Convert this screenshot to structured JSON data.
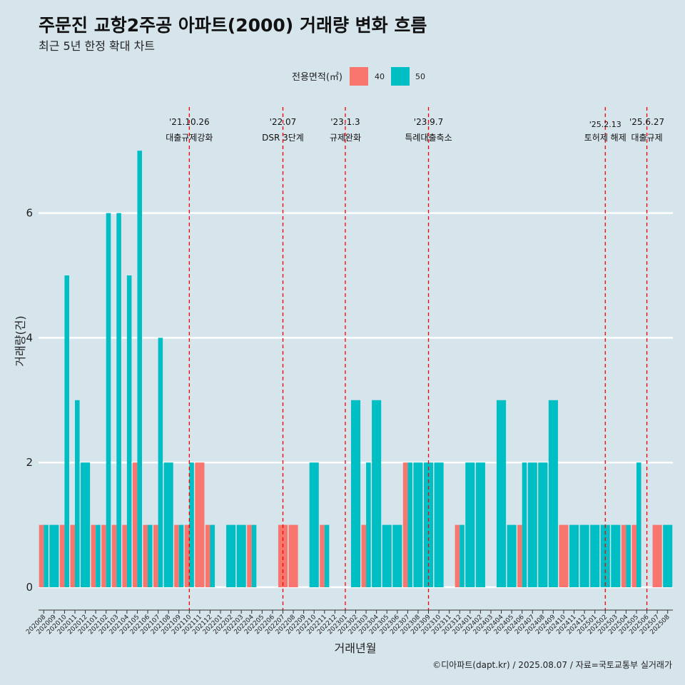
{
  "chart_data": {
    "type": "bar",
    "title": "주문진 교항2주공 아파트(2000) 거래량 변화 흐름",
    "subtitle": "최근 5년 한정 확대 차트",
    "xlabel": "거래년월",
    "ylabel": "거래량(건)",
    "caption": "©디아파트(dapt.kr) / 2025.08.07 / 자료=국토교통부 실거래가",
    "legend": {
      "title": "전용면적(㎡)",
      "position": "top"
    },
    "ylim": [
      0,
      7
    ],
    "yticks": [
      0,
      2,
      4,
      6
    ],
    "grid": true,
    "categories": [
      "202008",
      "202009",
      "202010",
      "202011",
      "202012",
      "202101",
      "202102",
      "202103",
      "202104",
      "202105",
      "202106",
      "202107",
      "202108",
      "202109",
      "202110",
      "202111",
      "202112",
      "202201",
      "202202",
      "202203",
      "202204",
      "202205",
      "202206",
      "202207",
      "202208",
      "202209",
      "202210",
      "202211",
      "202212",
      "202301",
      "202302",
      "202303",
      "202304",
      "202305",
      "202306",
      "202307",
      "202308",
      "202309",
      "202310",
      "202311",
      "202312",
      "202401",
      "202402",
      "202403",
      "202404",
      "202405",
      "202406",
      "202407",
      "202408",
      "202409",
      "202410",
      "202411",
      "202412",
      "202501",
      "202502",
      "202503",
      "202504",
      "202505",
      "202506",
      "202507",
      "202508"
    ],
    "series": [
      {
        "name": "40",
        "color": "#f8766d",
        "values": [
          1,
          0,
          1,
          1,
          0,
          1,
          1,
          1,
          1,
          2,
          1,
          1,
          0,
          1,
          1,
          2,
          1,
          0,
          0,
          0,
          1,
          0,
          0,
          1,
          1,
          0,
          0,
          1,
          0,
          0,
          0,
          1,
          0,
          0,
          0,
          2,
          0,
          0,
          0,
          0,
          1,
          0,
          0,
          0,
          0,
          0,
          1,
          0,
          0,
          0,
          1,
          0,
          0,
          0,
          0,
          0,
          1,
          1,
          0,
          1,
          0
        ]
      },
      {
        "name": "50",
        "color": "#00bfc4",
        "values": [
          1,
          1,
          5,
          3,
          2,
          1,
          6,
          6,
          5,
          7,
          1,
          4,
          2,
          1,
          2,
          0,
          1,
          0,
          1,
          1,
          1,
          0,
          0,
          0,
          0,
          0,
          2,
          1,
          0,
          0,
          3,
          2,
          3,
          1,
          1,
          2,
          2,
          2,
          2,
          0,
          1,
          2,
          2,
          0,
          3,
          1,
          2,
          2,
          2,
          3,
          0,
          1,
          1,
          1,
          1,
          1,
          1,
          2,
          0,
          0,
          1
        ]
      }
    ],
    "annotations": [
      {
        "x": "202110",
        "date": "'21.10.26",
        "label": "대출규제강화"
      },
      {
        "x": "202207",
        "date": "'22.07",
        "label": "DSR 3단계"
      },
      {
        "x": "202301",
        "date": "'23.1.3",
        "label": "규제완화"
      },
      {
        "x": "202309",
        "date": "'23.9.7",
        "label": "특례대출축소"
      },
      {
        "x": "202502",
        "date": "'25.2.13",
        "label": "토허제 해제"
      },
      {
        "x": "202506",
        "date": "'25.6.27",
        "label": "대출규제"
      }
    ]
  }
}
